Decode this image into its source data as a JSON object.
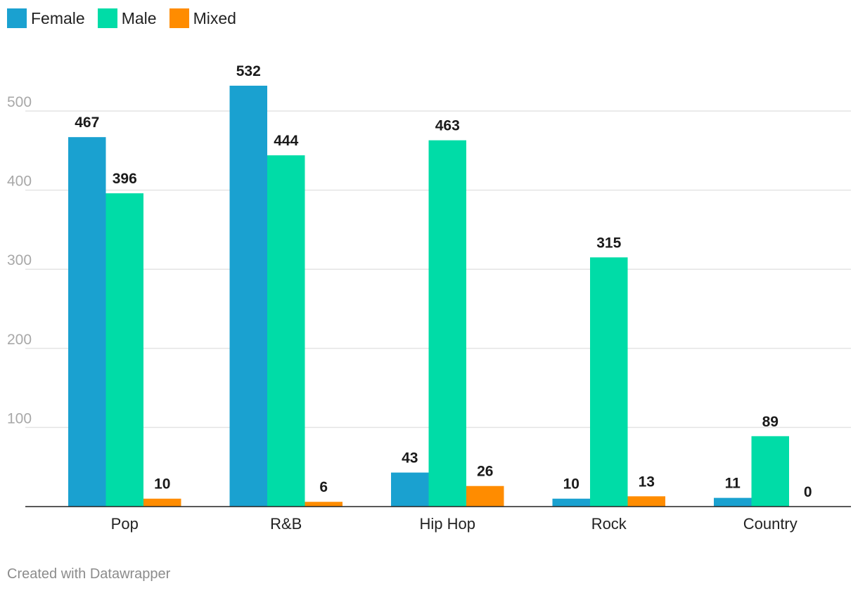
{
  "chart_data": {
    "type": "bar",
    "categories": [
      "Pop",
      "R&B",
      "Hip Hop",
      "Rock",
      "Country"
    ],
    "series": [
      {
        "name": "Female",
        "color": "#1aa1d0",
        "values": [
          467,
          532,
          43,
          10,
          11
        ]
      },
      {
        "name": "Male",
        "color": "#00dca7",
        "values": [
          396,
          444,
          463,
          315,
          89
        ]
      },
      {
        "name": "Mixed",
        "color": "#ff8c00",
        "values": [
          10,
          6,
          26,
          13,
          0
        ]
      }
    ],
    "yticks": [
      100,
      200,
      300,
      400,
      500
    ],
    "ylim": [
      0,
      555
    ],
    "grid": true,
    "legend_position": "top-left",
    "data_labels": true
  },
  "footer": "Created with Datawrapper"
}
